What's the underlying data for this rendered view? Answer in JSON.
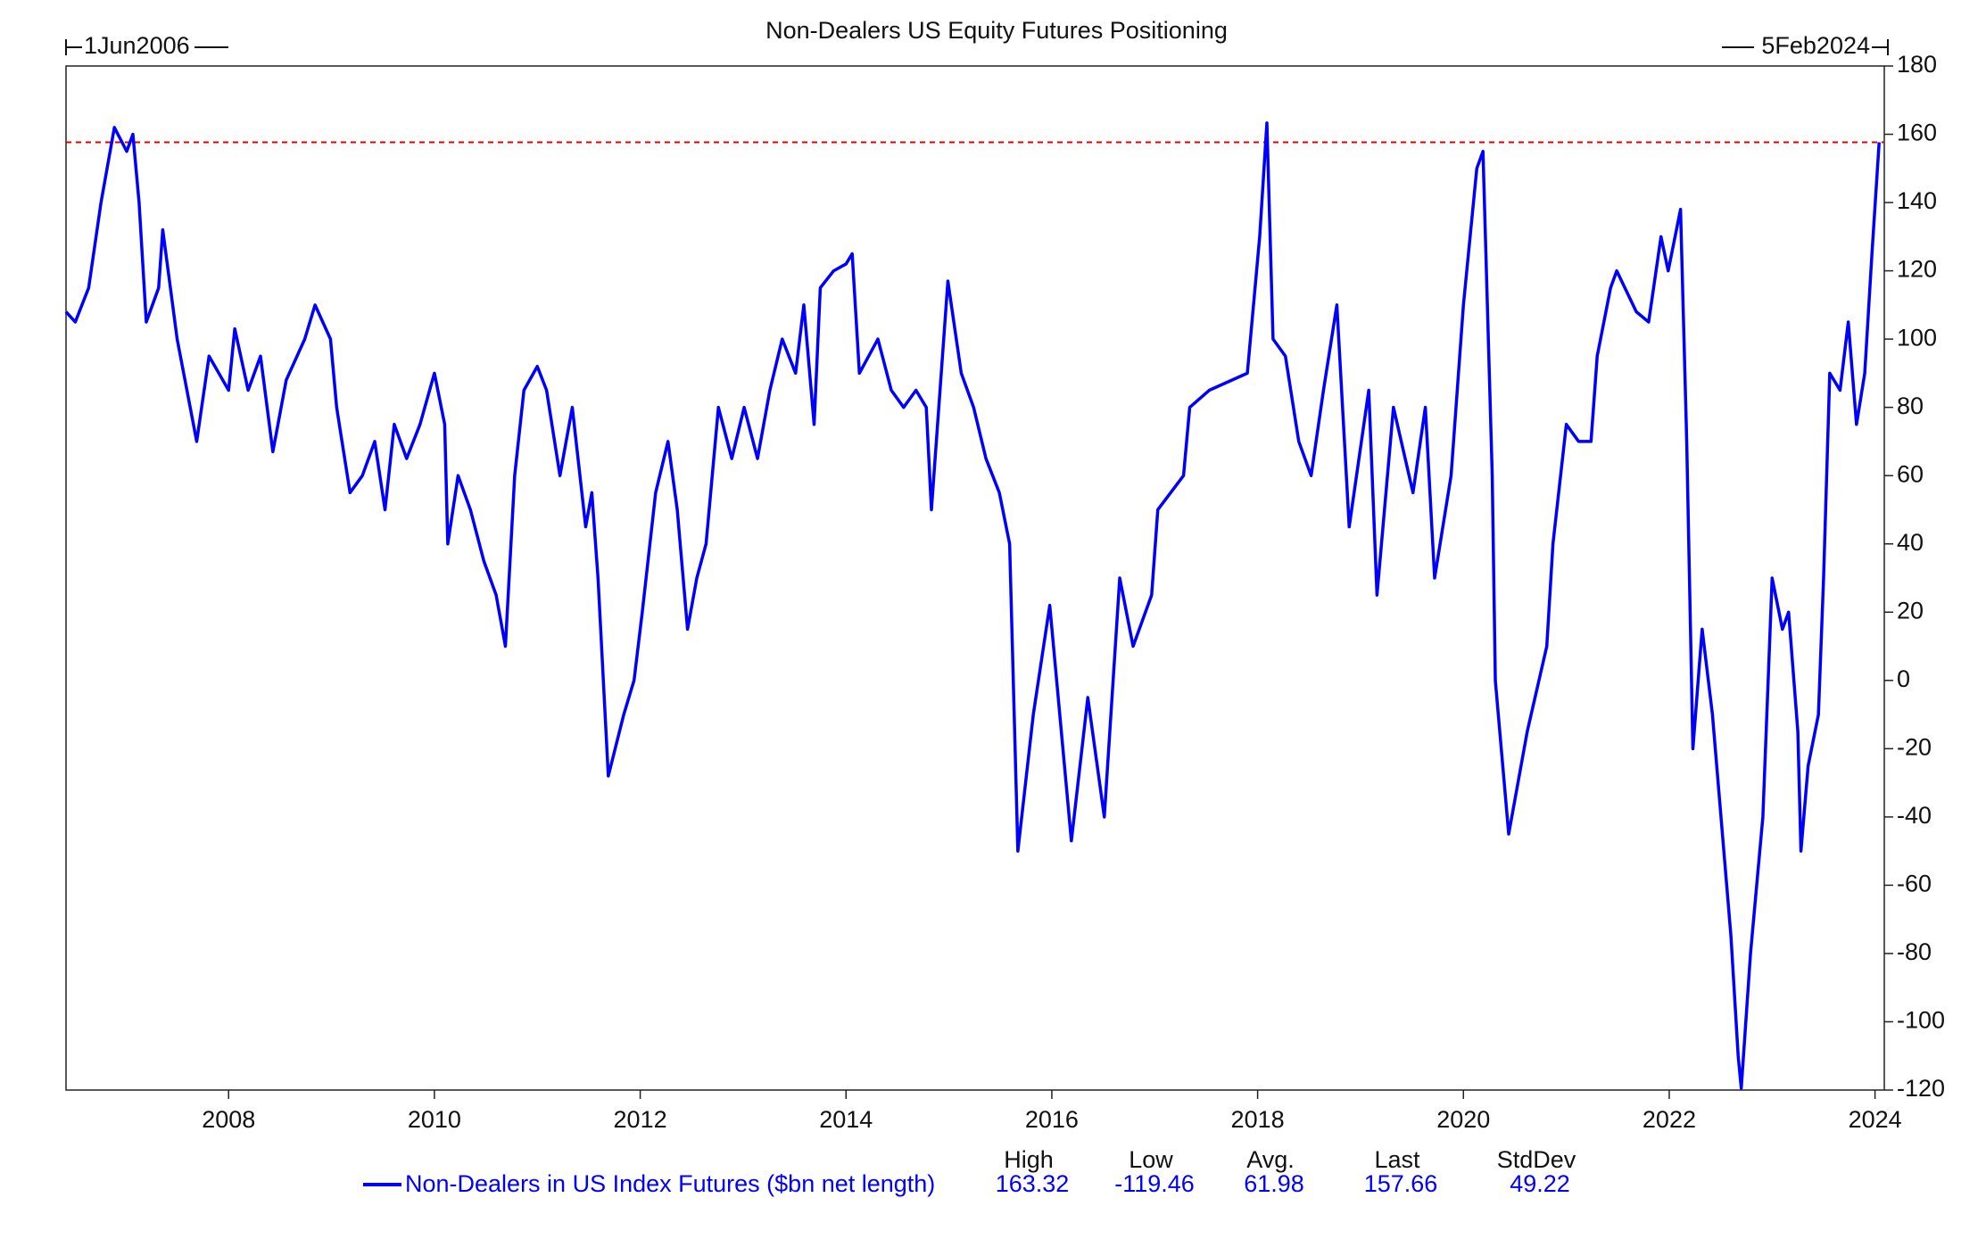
{
  "chart_data": {
    "type": "line",
    "title": "Non-Dealers US Equity Futures Positioning",
    "start_label": "1Jun2006",
    "end_label": "5Feb2024",
    "xlim": [
      2006.42,
      2024.09
    ],
    "xticks": [
      2008,
      2010,
      2012,
      2014,
      2016,
      2018,
      2020,
      2022,
      2024
    ],
    "ylim": [
      -120,
      180
    ],
    "yticks": [
      -120,
      -100,
      -80,
      -60,
      -40,
      -20,
      0,
      20,
      40,
      60,
      80,
      100,
      120,
      140,
      160,
      180
    ],
    "y_axis_side": "right",
    "grid": false,
    "reference_line": {
      "value": 157.66,
      "color": "#e00000",
      "style": "dashed"
    },
    "x": [
      2006.42,
      2006.51,
      2006.64,
      2006.76,
      2006.89,
      2007.01,
      2007.07,
      2007.13,
      2007.2,
      2007.32,
      2007.36,
      2007.5,
      2007.69,
      2007.81,
      2008.0,
      2008.06,
      2008.19,
      2008.31,
      2008.43,
      2008.56,
      2008.74,
      2008.84,
      2008.99,
      2009.05,
      2009.18,
      2009.3,
      2009.42,
      2009.52,
      2009.61,
      2009.73,
      2009.86,
      2010.0,
      2010.1,
      2010.13,
      2010.23,
      2010.35,
      2010.48,
      2010.6,
      2010.69,
      2010.78,
      2010.87,
      2011.0,
      2011.09,
      2011.22,
      2011.34,
      2011.47,
      2011.53,
      2011.59,
      2011.69,
      2011.84,
      2011.94,
      2012.02,
      2012.15,
      2012.27,
      2012.36,
      2012.46,
      2012.55,
      2012.64,
      2012.76,
      2012.89,
      2013.01,
      2013.14,
      2013.26,
      2013.38,
      2013.51,
      2013.59,
      2013.69,
      2013.75,
      2013.88,
      2014.0,
      2014.06,
      2014.13,
      2014.31,
      2014.44,
      2014.56,
      2014.68,
      2014.78,
      2014.83,
      2014.99,
      2015.12,
      2015.24,
      2015.36,
      2015.49,
      2015.59,
      2015.67,
      2015.82,
      2015.98,
      2016.19,
      2016.35,
      2016.51,
      2016.66,
      2016.79,
      2016.97,
      2017.03,
      2017.28,
      2017.34,
      2017.53,
      2017.9,
      2018.02,
      2018.09,
      2018.15,
      2018.27,
      2018.4,
      2018.52,
      2018.64,
      2018.77,
      2018.89,
      2019.08,
      2019.16,
      2019.32,
      2019.51,
      2019.63,
      2019.72,
      2019.88,
      2020.0,
      2020.13,
      2020.19,
      2020.28,
      2020.31,
      2020.44,
      2020.56,
      2020.62,
      2020.81,
      2020.87,
      2021.0,
      2021.12,
      2021.24,
      2021.3,
      2021.43,
      2021.49,
      2021.68,
      2021.8,
      2021.92,
      2021.99,
      2022.11,
      2022.17,
      2022.23,
      2022.32,
      2022.42,
      2022.6,
      2022.67,
      2022.7,
      2022.79,
      2022.91,
      2023.0,
      2023.1,
      2023.16,
      2023.25,
      2023.28,
      2023.35,
      2023.45,
      2023.5,
      2023.56,
      2023.66,
      2023.74,
      2023.82,
      2023.9,
      2023.97,
      2024.04
    ],
    "series": [
      {
        "name": "Non-Dealers in US Index Futures ($bn net length)",
        "color": "#0000ff",
        "values": [
          108,
          105,
          115,
          140,
          162,
          155,
          160,
          140,
          105,
          115,
          132,
          100,
          70,
          95,
          85,
          103,
          85,
          95,
          67,
          88,
          100,
          110,
          100,
          80,
          55,
          60,
          70,
          50,
          75,
          65,
          75,
          90,
          75,
          40,
          60,
          50,
          35,
          25,
          10,
          60,
          85,
          92,
          85,
          60,
          80,
          45,
          55,
          30,
          -28,
          -10,
          0,
          20,
          55,
          70,
          50,
          15,
          30,
          40,
          80,
          65,
          80,
          65,
          85,
          100,
          90,
          110,
          75,
          115,
          120,
          122,
          125,
          90,
          100,
          85,
          80,
          85,
          80,
          50,
          117,
          90,
          80,
          65,
          55,
          40,
          -50,
          -10,
          22,
          -47,
          -5,
          -40,
          30,
          10,
          25,
          50,
          60,
          80,
          85,
          90,
          130,
          163.32,
          100,
          95,
          70,
          60,
          85,
          110,
          45,
          85,
          25,
          80,
          55,
          80,
          30,
          60,
          110,
          150,
          155,
          60,
          0,
          -45,
          -25,
          -15,
          10,
          40,
          75,
          70,
          70,
          95,
          115,
          120,
          108,
          105,
          130,
          120,
          138,
          70,
          -20,
          15,
          -10,
          -75,
          -110,
          -119.46,
          -80,
          -40,
          30,
          15,
          20,
          -15,
          -50,
          -25,
          -10,
          30,
          90,
          85,
          105,
          75,
          90,
          125,
          157.66
        ]
      }
    ],
    "stats": {
      "headers": [
        "High",
        "Low",
        "Avg.",
        "Last",
        "StdDev"
      ],
      "values": [
        163.32,
        -119.46,
        61.98,
        157.66,
        49.22
      ]
    }
  }
}
